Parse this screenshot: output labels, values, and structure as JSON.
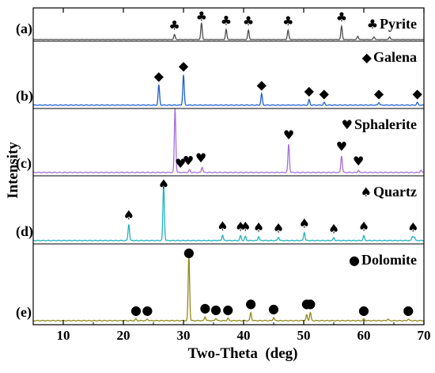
{
  "chart_data": {
    "type": "line",
    "xlabel": "Two-Theta  (deg)",
    "ylabel": "Intensity",
    "xlim": [
      5,
      70
    ],
    "x_ticks": [
      10,
      20,
      30,
      40,
      50,
      60,
      70
    ],
    "grid": false,
    "panels": [
      {
        "id": "a",
        "label": "(a)",
        "legend": "Pyrite",
        "color": "#4d4d4d",
        "marker": "club",
        "baseline": 0.05,
        "peaks": [
          {
            "x": 28.5,
            "h": 0.15
          },
          {
            "x": 33.0,
            "h": 0.5
          },
          {
            "x": 37.1,
            "h": 0.3
          },
          {
            "x": 40.8,
            "h": 0.28
          },
          {
            "x": 47.4,
            "h": 0.28
          },
          {
            "x": 56.3,
            "h": 0.4
          },
          {
            "x": 59.0,
            "h": 0.1
          },
          {
            "x": 61.7,
            "h": 0.08
          },
          {
            "x": 64.3,
            "h": 0.08
          }
        ],
        "markers": [
          28.5,
          33.0,
          37.1,
          40.8,
          47.4,
          56.3
        ]
      },
      {
        "id": "b",
        "label": "(b)",
        "legend": "Galena",
        "color": "#1f5fd1",
        "marker": "diamond",
        "baseline": 0.05,
        "peaks": [
          {
            "x": 25.9,
            "h": 0.3
          },
          {
            "x": 30.0,
            "h": 0.45
          },
          {
            "x": 43.0,
            "h": 0.17
          },
          {
            "x": 50.9,
            "h": 0.08
          },
          {
            "x": 53.4,
            "h": 0.04
          },
          {
            "x": 62.5,
            "h": 0.04
          },
          {
            "x": 68.9,
            "h": 0.04
          }
        ],
        "markers": [
          25.9,
          30.0,
          43.0,
          50.9,
          53.4,
          62.5,
          68.9
        ]
      },
      {
        "id": "c",
        "label": "(c)",
        "legend": "Sphalerite",
        "color": "#a66fd8",
        "marker": "heart",
        "baseline": 0.05,
        "peaks": [
          {
            "x": 28.6,
            "h": 0.95
          },
          {
            "x": 31.0,
            "h": 0.04
          },
          {
            "x": 33.1,
            "h": 0.08
          },
          {
            "x": 47.5,
            "h": 0.42
          },
          {
            "x": 56.3,
            "h": 0.25
          },
          {
            "x": 59.1,
            "h": 0.03
          },
          {
            "x": 69.5,
            "h": 0.03
          }
        ],
        "markers": [
          29.5,
          30.8,
          32.9,
          47.5,
          56.3,
          59.1
        ]
      },
      {
        "id": "d",
        "label": "(d)",
        "legend": "Quartz",
        "color": "#1fb4bc",
        "marker": "spade",
        "baseline": 0.05,
        "peaks": [
          {
            "x": 20.9,
            "h": 0.24
          },
          {
            "x": 26.7,
            "h": 0.82
          },
          {
            "x": 36.5,
            "h": 0.08
          },
          {
            "x": 39.5,
            "h": 0.07
          },
          {
            "x": 40.3,
            "h": 0.06
          },
          {
            "x": 42.5,
            "h": 0.06
          },
          {
            "x": 45.8,
            "h": 0.05
          },
          {
            "x": 50.1,
            "h": 0.12
          },
          {
            "x": 55.0,
            "h": 0.04
          },
          {
            "x": 60.0,
            "h": 0.07
          },
          {
            "x": 68.1,
            "h": 0.06
          },
          {
            "x": 68.4,
            "h": 0.05
          }
        ],
        "markers": [
          20.9,
          26.7,
          36.5,
          39.5,
          40.3,
          42.5,
          45.8,
          50.1,
          55.0,
          60.0,
          68.2
        ]
      },
      {
        "id": "e",
        "label": "(e)",
        "legend": "Dolomite",
        "color": "#8f8a1c",
        "marker": "circle",
        "baseline": 0.05,
        "peaks": [
          {
            "x": 22.1,
            "h": 0.02
          },
          {
            "x": 24.0,
            "h": 0.02
          },
          {
            "x": 30.9,
            "h": 0.8
          },
          {
            "x": 33.6,
            "h": 0.05
          },
          {
            "x": 35.4,
            "h": 0.03
          },
          {
            "x": 37.4,
            "h": 0.03
          },
          {
            "x": 41.2,
            "h": 0.1
          },
          {
            "x": 45.0,
            "h": 0.04
          },
          {
            "x": 50.5,
            "h": 0.07
          },
          {
            "x": 51.1,
            "h": 0.1
          },
          {
            "x": 60.0,
            "h": 0.02
          },
          {
            "x": 64.0,
            "h": 0.02
          },
          {
            "x": 67.4,
            "h": 0.02
          }
        ],
        "markers": [
          22.1,
          24.0,
          30.9,
          33.6,
          35.4,
          37.4,
          41.2,
          45.0,
          50.5,
          51.1,
          60.0,
          67.4
        ]
      }
    ]
  }
}
